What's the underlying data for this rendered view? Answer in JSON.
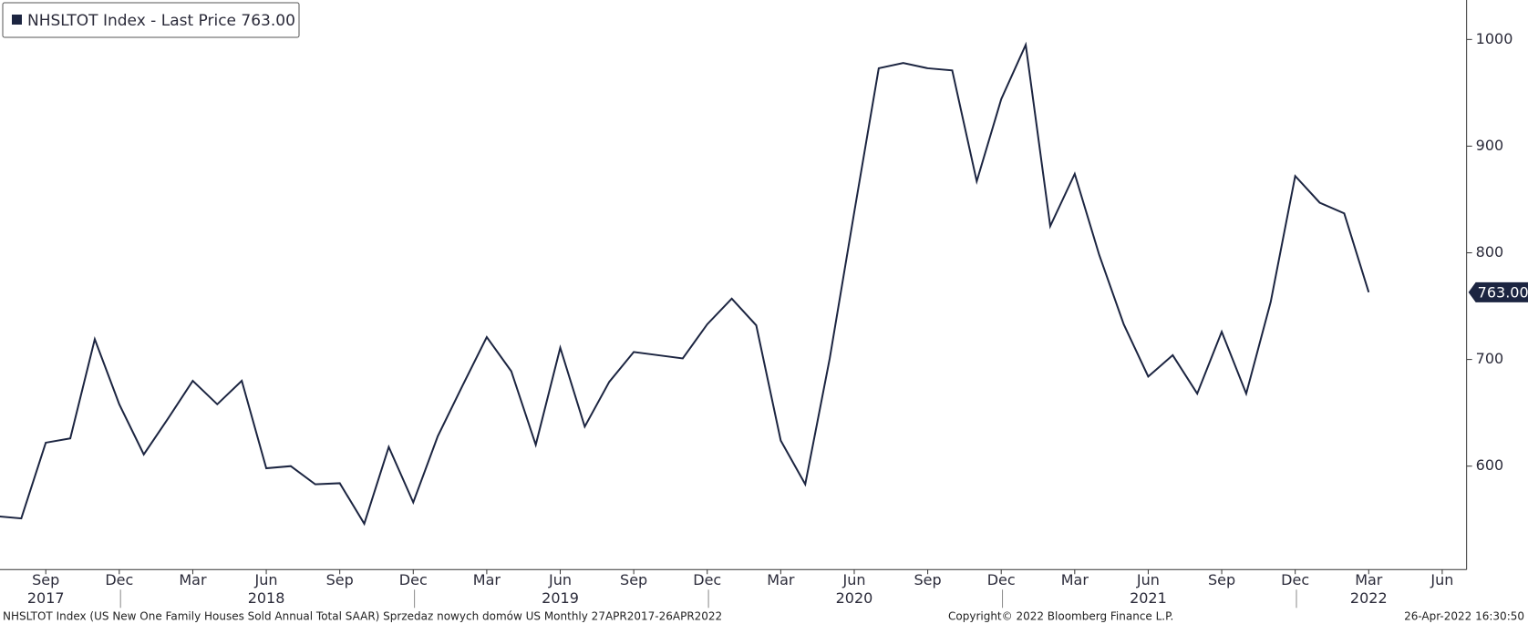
{
  "chart_data": {
    "type": "line",
    "legend": "NHSLTOT Index - Last Price 763.00",
    "x": [
      "2017-07",
      "2017-08",
      "2017-09",
      "2017-10",
      "2017-11",
      "2017-12",
      "2018-01",
      "2018-02",
      "2018-03",
      "2018-04",
      "2018-05",
      "2018-06",
      "2018-07",
      "2018-08",
      "2018-09",
      "2018-10",
      "2018-11",
      "2018-12",
      "2019-01",
      "2019-02",
      "2019-03",
      "2019-04",
      "2019-05",
      "2019-06",
      "2019-07",
      "2019-08",
      "2019-09",
      "2019-10",
      "2019-11",
      "2019-12",
      "2020-01",
      "2020-02",
      "2020-03",
      "2020-04",
      "2020-05",
      "2020-06",
      "2020-07",
      "2020-08",
      "2020-09",
      "2020-10",
      "2020-11",
      "2020-12",
      "2021-01",
      "2021-02",
      "2021-03",
      "2021-04",
      "2021-05",
      "2021-06",
      "2021-07",
      "2021-08",
      "2021-09",
      "2021-10",
      "2021-11",
      "2021-12",
      "2022-01",
      "2022-02",
      "2022-03"
    ],
    "series": [
      {
        "name": "NHSLTOT Index",
        "color": "#1c2541",
        "values": [
          553,
          551,
          622,
          626,
          719,
          658,
          611,
          645,
          680,
          658,
          680,
          598,
          600,
          583,
          584,
          546,
          618,
          566,
          628,
          675,
          721,
          689,
          620,
          711,
          637,
          679,
          707,
          704,
          701,
          733,
          757,
          732,
          624,
          583,
          701,
          838,
          973,
          978,
          973,
          971,
          867,
          944,
          995,
          825,
          874,
          798,
          733,
          684,
          704,
          668,
          726,
          668,
          754,
          872,
          847,
          837,
          763
        ],
        "last_value_label": "763.00"
      }
    ],
    "ylim": [
      503,
      1037
    ],
    "yticks": [
      600,
      700,
      800,
      900,
      1000
    ],
    "xticks": [
      {
        "value": "2017-09",
        "label": "Sep"
      },
      {
        "value": "2017-12",
        "label": "Dec"
      },
      {
        "value": "2018-03",
        "label": "Mar"
      },
      {
        "value": "2018-06",
        "label": "Jun"
      },
      {
        "value": "2018-09",
        "label": "Sep"
      },
      {
        "value": "2018-12",
        "label": "Dec"
      },
      {
        "value": "2019-03",
        "label": "Mar"
      },
      {
        "value": "2019-06",
        "label": "Jun"
      },
      {
        "value": "2019-09",
        "label": "Sep"
      },
      {
        "value": "2019-12",
        "label": "Dec"
      },
      {
        "value": "2020-03",
        "label": "Mar"
      },
      {
        "value": "2020-06",
        "label": "Jun"
      },
      {
        "value": "2020-09",
        "label": "Sep"
      },
      {
        "value": "2020-12",
        "label": "Dec"
      },
      {
        "value": "2021-03",
        "label": "Mar"
      },
      {
        "value": "2021-06",
        "label": "Jun"
      },
      {
        "value": "2021-09",
        "label": "Sep"
      },
      {
        "value": "2021-12",
        "label": "Dec"
      },
      {
        "value": "2022-03",
        "label": "Mar"
      },
      {
        "value": "2022-06",
        "label": "Jun"
      }
    ],
    "years": [
      "2017",
      "2018",
      "2019",
      "2020",
      "2021",
      "2022"
    ],
    "footer_left": "NHSLTOT Index (US New One Family Houses Sold Annual Total SAAR) Sprzedaz nowych domów US  Monthly 27APR2017-26APR2022",
    "footer_center": "Copyright© 2022 Bloomberg Finance L.P.",
    "footer_right": "26-Apr-2022 16:30:50"
  }
}
